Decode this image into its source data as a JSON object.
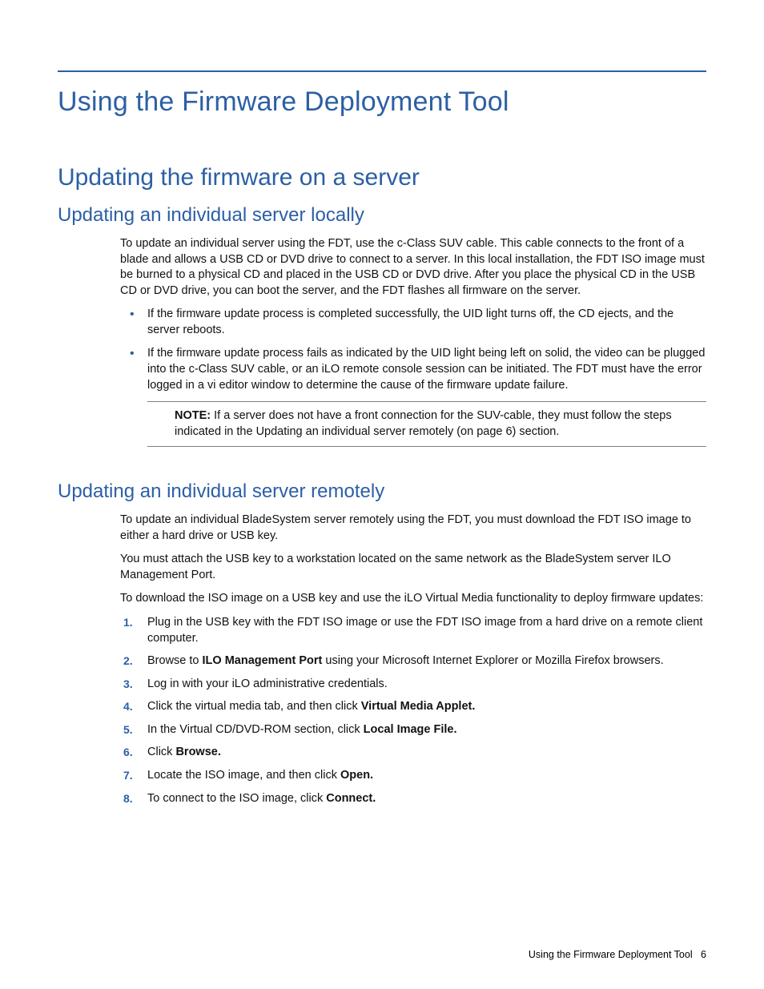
{
  "colors": {
    "accent": "#2c5fa5",
    "text": "#000000",
    "rule": "#808080",
    "background": "#ffffff"
  },
  "title": "Using the Firmware Deployment Tool",
  "section": "Updating the firmware on a server",
  "sub1": {
    "heading": "Updating an individual server locally",
    "para1": "To update an individual server using the FDT, use the c-Class SUV cable. This cable connects to the front of a blade and allows a USB CD or DVD drive to connect to a server. In this local installation, the FDT ISO image must be burned to a physical CD and placed in the USB CD or DVD drive. After you place the physical CD  in the USB CD or DVD drive, you can boot the server, and the FDT flashes all firmware on the server.",
    "bullets": [
      "If the firmware update process is completed successfully, the UID light turns off, the CD ejects, and the server reboots.",
      "If the firmware update process fails as indicated by the UID light being left on solid, the video can be plugged into the c-Class SUV cable, or an iLO remote console session can be initiated. The FDT must have the error logged in a vi editor window to determine the cause of the firmware update failure."
    ],
    "note_label": "NOTE:",
    "note_text": "  If a server does not have a front connection for the SUV-cable, they must follow the steps indicated in the Updating an individual server remotely (on page 6) section."
  },
  "sub2": {
    "heading": "Updating an individual server remotely",
    "para1": "To update an individual BladeSystem server remotely using the FDT, you must download the FDT ISO image to either a hard drive or USB key.",
    "para2": "You must attach the USB key to a workstation located on the same network as the BladeSystem server ILO Management Port.",
    "para3": "To download the ISO image on a USB key and use the iLO Virtual Media functionality to deploy firmware updates:",
    "steps": [
      {
        "pre": "Plug in the USB key with the FDT ISO image or use the FDT ISO image from a hard drive on a remote client computer.",
        "bold": "",
        "post": ""
      },
      {
        "pre": "Browse to ",
        "bold": "ILO Management Port",
        "post": " using your Microsoft Internet Explorer or Mozilla Firefox browsers."
      },
      {
        "pre": "Log in with your iLO administrative credentials.",
        "bold": "",
        "post": ""
      },
      {
        "pre": "Click the virtual media tab, and then click ",
        "bold": "Virtual Media Applet.",
        "post": ""
      },
      {
        "pre": "In the Virtual CD/DVD-ROM section, click ",
        "bold": "Local Image File.",
        "post": ""
      },
      {
        "pre": "Click ",
        "bold": "Browse.",
        "post": ""
      },
      {
        "pre": "Locate the ISO image, and then click ",
        "bold": "Open.",
        "post": ""
      },
      {
        "pre": "To connect to the ISO image, click ",
        "bold": "Connect.",
        "post": ""
      }
    ]
  },
  "footer": {
    "text": "Using the Firmware Deployment Tool",
    "page": "6"
  }
}
